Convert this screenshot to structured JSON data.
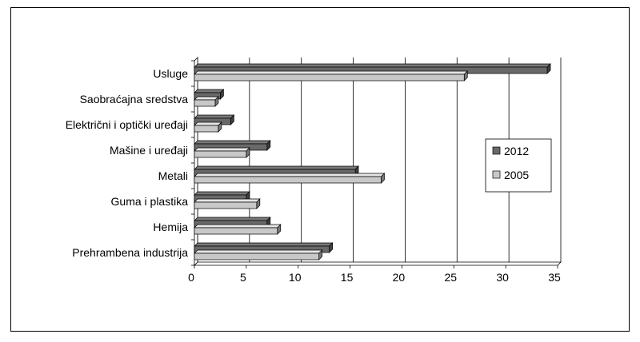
{
  "chart_data": {
    "type": "bar",
    "orientation": "horizontal",
    "style": "3d",
    "title": "",
    "xlabel": "",
    "ylabel": "",
    "categories": [
      "Usluge",
      "Saobraćajna sredstva",
      "Električni i optički uređaji",
      "Mašine i uređaji",
      "Metali",
      "Guma i plastika",
      "Hemija",
      "Prehrambena industrija"
    ],
    "series": [
      {
        "name": "2012",
        "color": "#696969",
        "values": [
          34,
          2.5,
          3.5,
          7,
          15.5,
          5,
          7,
          13
        ]
      },
      {
        "name": "2005",
        "color": "#c8c8c8",
        "values": [
          26,
          2,
          2.3,
          5,
          18,
          6,
          8,
          12
        ]
      }
    ],
    "xlim": [
      0,
      35
    ],
    "xticks": [
      "0",
      "5",
      "10",
      "15",
      "20",
      "25",
      "30",
      "35"
    ],
    "grid": true,
    "legend_position": "right"
  }
}
